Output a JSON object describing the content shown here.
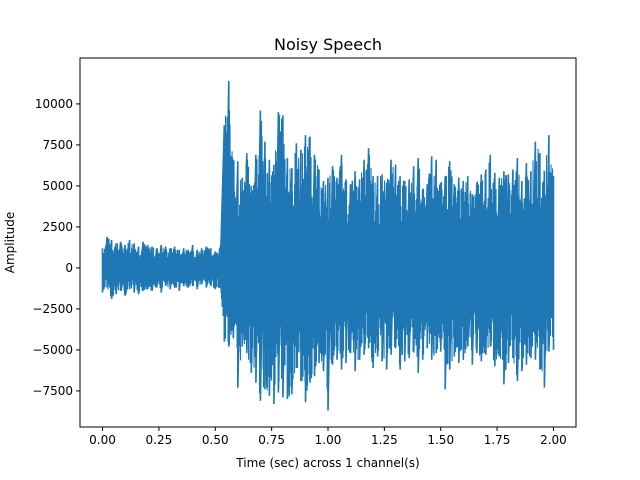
{
  "chart_data": {
    "type": "line",
    "title": "Noisy Speech",
    "xlabel": "Time (sec) across 1 channel(s)",
    "ylabel": "Amplitude",
    "xlim": [
      -0.1,
      2.1
    ],
    "ylim": [
      -9700,
      12800
    ],
    "xticks": [
      0.0,
      0.25,
      0.5,
      0.75,
      1.0,
      1.25,
      1.5,
      1.75,
      2.0
    ],
    "xtick_labels": [
      "0.00",
      "0.25",
      "0.50",
      "0.75",
      "1.00",
      "1.25",
      "1.50",
      "1.75",
      "2.00"
    ],
    "yticks": [
      -7500,
      -5000,
      -2500,
      0,
      2500,
      5000,
      7500,
      10000
    ],
    "ytick_labels": [
      "−7500",
      "−5000",
      "−2500",
      "0",
      "2500",
      "5000",
      "7500",
      "10000"
    ],
    "grid": false,
    "series": [
      {
        "color": "#1f77b4",
        "x": [
          0.0,
          0.02,
          0.04,
          0.06,
          0.08,
          0.1,
          0.12,
          0.14,
          0.16,
          0.18,
          0.2,
          0.22,
          0.24,
          0.26,
          0.28,
          0.3,
          0.32,
          0.34,
          0.36,
          0.38,
          0.4,
          0.42,
          0.44,
          0.46,
          0.48,
          0.5,
          0.52,
          0.54,
          0.56,
          0.58,
          0.6,
          0.62,
          0.64,
          0.66,
          0.68,
          0.7,
          0.72,
          0.74,
          0.76,
          0.78,
          0.8,
          0.82,
          0.84,
          0.86,
          0.88,
          0.9,
          0.92,
          0.94,
          0.96,
          0.98,
          1.0,
          1.02,
          1.04,
          1.06,
          1.08,
          1.1,
          1.12,
          1.14,
          1.16,
          1.18,
          1.2,
          1.22,
          1.24,
          1.26,
          1.28,
          1.3,
          1.32,
          1.34,
          1.36,
          1.38,
          1.4,
          1.42,
          1.44,
          1.46,
          1.48,
          1.5,
          1.52,
          1.54,
          1.56,
          1.58,
          1.6,
          1.62,
          1.64,
          1.66,
          1.68,
          1.7,
          1.72,
          1.74,
          1.76,
          1.78,
          1.8,
          1.82,
          1.84,
          1.86,
          1.88,
          1.9,
          1.92,
          1.94,
          1.96,
          1.98,
          2.0
        ],
        "y_max": [
          1200,
          1900,
          1700,
          1500,
          1600,
          1400,
          1700,
          1500,
          1300,
          1600,
          1400,
          1300,
          1200,
          1400,
          1300,
          1200,
          1300,
          1100,
          1200,
          1100,
          1400,
          1100,
          1200,
          1300,
          1200,
          1000,
          1200,
          8700,
          11400,
          6600,
          6500,
          5500,
          7000,
          5000,
          6900,
          9600,
          7700,
          6600,
          6300,
          9500,
          9300,
          6700,
          6100,
          7600,
          7200,
          8100,
          8000,
          6900,
          6000,
          5300,
          5500,
          6200,
          5500,
          6900,
          5400,
          5100,
          5900,
          5400,
          6600,
          7300,
          5600,
          5600,
          5700,
          5200,
          6600,
          6300,
          5600,
          5300,
          5400,
          6200,
          6700,
          4800,
          5100,
          6800,
          6600,
          5200,
          5600,
          6500,
          5100,
          5500,
          5300,
          5600,
          4500,
          5200,
          5700,
          6000,
          6900,
          5800,
          5500,
          5900,
          5700,
          6000,
          6700,
          5300,
          6400,
          5900,
          7700,
          7000,
          5900,
          8100,
          5600
        ],
        "y_min": [
          -1500,
          -1200,
          -1900,
          -1600,
          -1400,
          -1700,
          -1300,
          -1500,
          -1600,
          -1400,
          -1300,
          -1400,
          -1200,
          -1500,
          -1100,
          -1300,
          -1200,
          -1400,
          -1100,
          -1200,
          -1100,
          -1300,
          -1000,
          -1200,
          -1100,
          -1300,
          -1200,
          -4500,
          -4800,
          -4300,
          -7300,
          -4800,
          -5200,
          -6400,
          -7000,
          -8100,
          -7400,
          -7800,
          -8300,
          -7600,
          -7900,
          -8000,
          -7700,
          -6100,
          -6900,
          -8200,
          -7000,
          -6600,
          -5800,
          -6300,
          -8700,
          -5900,
          -5600,
          -6200,
          -5800,
          -5200,
          -6300,
          -5600,
          -5300,
          -4900,
          -6100,
          -5400,
          -5700,
          -6200,
          -5300,
          -4900,
          -6200,
          -5700,
          -5500,
          -5100,
          -6400,
          -5600,
          -4900,
          -5600,
          -5200,
          -5100,
          -7400,
          -6200,
          -5400,
          -5800,
          -5600,
          -4800,
          -5900,
          -5200,
          -5700,
          -5300,
          -4800,
          -6000,
          -5400,
          -7100,
          -5800,
          -5500,
          -6900,
          -6300,
          -5900,
          -5500,
          -5600,
          -6200,
          -7300,
          -5100,
          -5000
        ]
      }
    ]
  }
}
